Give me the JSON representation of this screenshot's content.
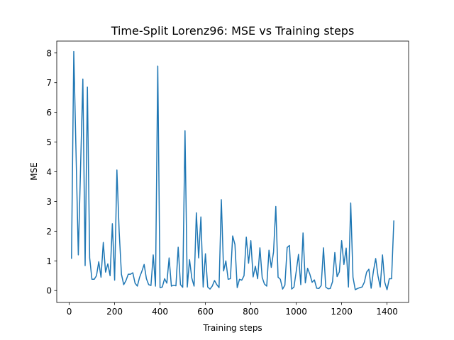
{
  "chart_data": {
    "type": "line",
    "title": "Time-Split Lorenz96: MSE vs Training steps",
    "xlabel": "Training steps",
    "ylabel": "MSE",
    "xlim": [
      -55,
      1495
    ],
    "ylim": [
      -0.4,
      8.4
    ],
    "xticks": [
      0,
      200,
      400,
      600,
      800,
      1000,
      1200,
      1400
    ],
    "yticks": [
      0,
      1,
      2,
      3,
      4,
      5,
      6,
      7,
      8
    ],
    "grid": false,
    "legend": false,
    "line_color": "#1f77b4",
    "series": [
      {
        "x": [
          10,
          20,
          40,
          60,
          70,
          80,
          90,
          100,
          110,
          120,
          130,
          140,
          150,
          160,
          170,
          180,
          190,
          200,
          210,
          220,
          230,
          240,
          250,
          260,
          270,
          280,
          290,
          300,
          310,
          320,
          330,
          340,
          350,
          360,
          370,
          380,
          390,
          400,
          410,
          420,
          430,
          440,
          450,
          460,
          470,
          480,
          490,
          500,
          510,
          520,
          530,
          540,
          550,
          560,
          570,
          580,
          590,
          600,
          610,
          620,
          630,
          640,
          650,
          660,
          670,
          680,
          690,
          700,
          710,
          720,
          730,
          740,
          750,
          760,
          770,
          780,
          790,
          800,
          810,
          820,
          830,
          840,
          850,
          860,
          870,
          880,
          890,
          900,
          910,
          920,
          930,
          940,
          950,
          960,
          970,
          980,
          990,
          1000,
          1010,
          1020,
          1030,
          1040,
          1050,
          1060,
          1070,
          1080,
          1090,
          1100,
          1110,
          1120,
          1130,
          1140,
          1150,
          1160,
          1170,
          1180,
          1190,
          1200,
          1210,
          1220,
          1230,
          1240,
          1250,
          1260,
          1270,
          1280,
          1290,
          1300,
          1310,
          1320,
          1330,
          1340,
          1350,
          1360,
          1370,
          1380,
          1390,
          1400,
          1410,
          1420,
          1430
        ],
        "y": [
          1.07,
          8.05,
          1.2,
          7.12,
          0.84,
          6.85,
          1.1,
          0.38,
          0.38,
          0.5,
          0.97,
          0.45,
          1.62,
          0.62,
          0.9,
          0.5,
          2.25,
          0.35,
          4.06,
          1.98,
          0.55,
          0.2,
          0.34,
          0.55,
          0.55,
          0.6,
          0.25,
          0.15,
          0.45,
          0.65,
          0.88,
          0.4,
          0.2,
          0.17,
          1.2,
          0.15,
          7.56,
          0.1,
          0.12,
          0.4,
          0.25,
          1.1,
          0.15,
          0.18,
          0.16,
          1.46,
          0.2,
          0.11,
          5.38,
          0.12,
          1.04,
          0.42,
          0.15,
          2.62,
          1.1,
          2.48,
          0.12,
          1.24,
          0.12,
          0.05,
          0.15,
          0.34,
          0.2,
          0.1,
          3.06,
          0.66,
          1.0,
          0.38,
          0.4,
          1.84,
          1.55,
          0.1,
          0.38,
          0.35,
          0.5,
          1.8,
          0.92,
          1.68,
          0.46,
          0.82,
          0.4,
          1.44,
          0.44,
          0.22,
          0.15,
          1.36,
          0.78,
          1.3,
          2.83,
          0.45,
          0.38,
          0.05,
          0.18,
          1.45,
          1.52,
          0.05,
          0.12,
          0.65,
          1.22,
          0.2,
          1.94,
          0.26,
          0.75,
          0.55,
          0.28,
          0.36,
          0.08,
          0.07,
          0.17,
          1.44,
          0.12,
          0.06,
          0.07,
          0.3,
          1.28,
          0.47,
          0.63,
          1.68,
          0.88,
          1.43,
          0.12,
          2.95,
          0.45,
          0.03,
          0.07,
          0.1,
          0.12,
          0.28,
          0.62,
          0.72,
          0.08,
          0.65,
          1.08,
          0.5,
          0.12,
          1.2,
          0.28,
          0.03,
          0.4,
          0.4,
          2.36
        ]
      }
    ]
  }
}
